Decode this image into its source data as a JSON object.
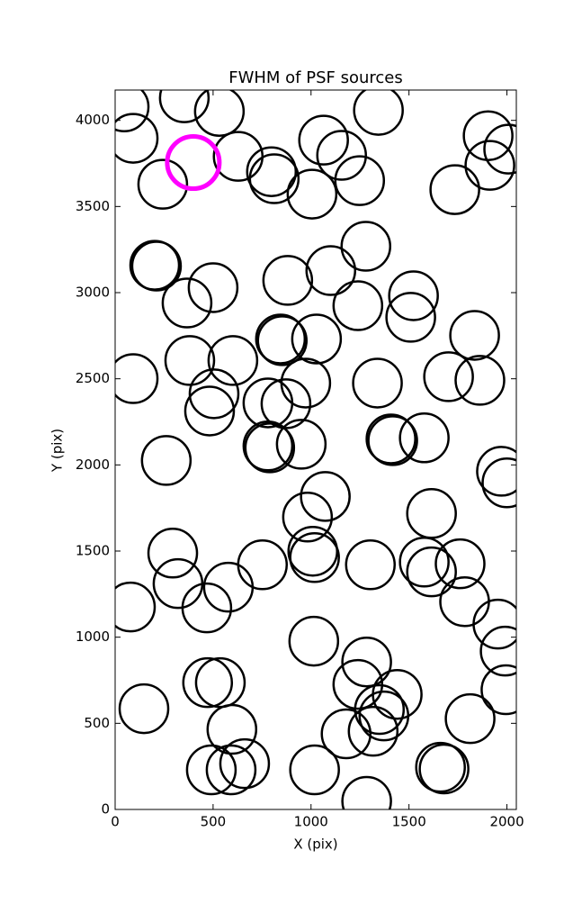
{
  "chart_data": {
    "type": "scatter",
    "title": "FWHM of PSF sources",
    "xlabel": "X (pix)",
    "ylabel": "Y (pix)",
    "xlim": [
      0,
      2048
    ],
    "ylim": [
      0,
      4176
    ],
    "xticks": [
      0,
      500,
      1000,
      1500,
      2000
    ],
    "yticks": [
      0,
      500,
      1000,
      1500,
      2000,
      2500,
      3000,
      3500,
      4000
    ],
    "grid": false,
    "marker": "open-circle",
    "series": [
      {
        "color": "#000000",
        "x": [
          46,
          92,
          353,
          532,
          243,
          628,
          798,
          812,
          1005,
          1064,
          1156,
          1248,
          1344,
          1734,
          1904,
          1913,
          2009,
          202,
          211,
          367,
          500,
          881,
          1101,
          1280,
          1239,
          1523,
          1509,
          1835,
          844,
          853,
          1028,
          381,
          601,
          92,
          505,
          482,
          780,
          872,
          973,
          1339,
          1702,
          1862,
          780,
          789,
          950,
          261,
          1408,
          1417,
          1578,
          1972,
          2000,
          1073,
          982,
          1615,
          294,
          321,
          468,
          578,
          752,
          1009,
          1018,
          1303,
          1578,
          1615,
          1761,
          1784,
          78,
          1954,
          1991,
          1995,
          1014,
          472,
          537,
          1284,
          1239,
          1440,
          1349,
          1372,
          1317,
          1179,
          1812,
          147,
          596,
          491,
          661,
          592,
          1018,
          1284,
          1661,
          1679
        ],
        "values": [
          4078,
          3896,
          4131,
          4052,
          3629,
          3791,
          3702,
          3661,
          3572,
          3885,
          3797,
          3650,
          4058,
          3598,
          3911,
          3739,
          3833,
          3159,
          3154,
          2940,
          3029,
          3071,
          3128,
          3269,
          2924,
          2982,
          2857,
          2752,
          2731,
          2721,
          2731,
          2606,
          2606,
          2501,
          2413,
          2313,
          2360,
          2355,
          2475,
          2475,
          2512,
          2491,
          2110,
          2099,
          2120,
          2026,
          2151,
          2141,
          2157,
          1963,
          1896,
          1817,
          1697,
          1718,
          1488,
          1311,
          1170,
          1290,
          1420,
          1499,
          1462,
          1420,
          1436,
          1379,
          1426,
          1206,
          1175,
          1076,
          919,
          695,
          977,
          736,
          736,
          856,
          726,
          668,
          580,
          543,
          454,
          439,
          527,
          585,
          465,
          230,
          266,
          230,
          230,
          47,
          245,
          235
        ]
      },
      {
        "color": "#ff00ff",
        "x": [
          399
        ],
        "values": [
          3755
        ]
      }
    ]
  }
}
